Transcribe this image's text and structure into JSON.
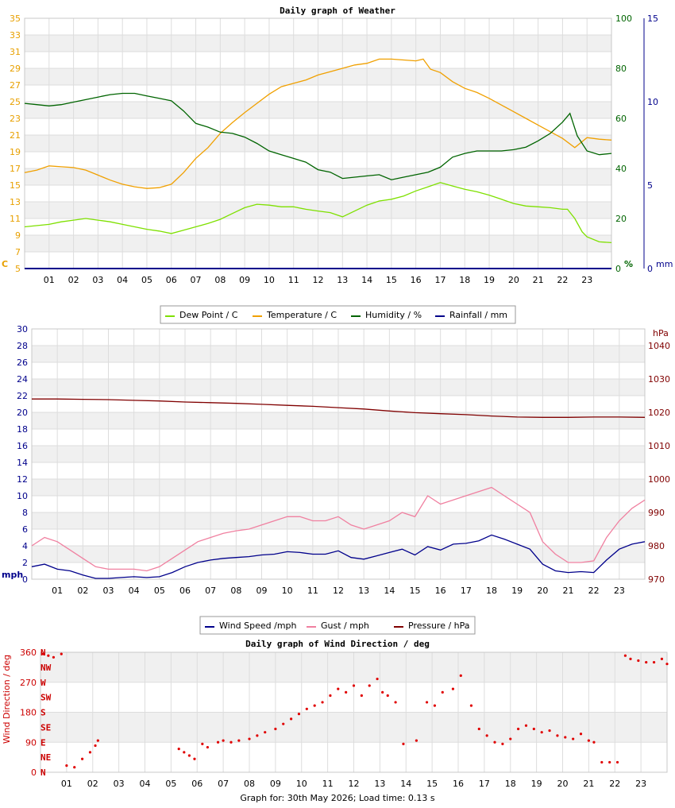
{
  "footer": {
    "text": "Graph for: 30th May 2026; Load time: 0.13 s"
  },
  "hours": [
    "01",
    "02",
    "03",
    "04",
    "05",
    "06",
    "07",
    "08",
    "09",
    "10",
    "11",
    "12",
    "13",
    "14",
    "15",
    "16",
    "17",
    "18",
    "19",
    "20",
    "21",
    "22",
    "23"
  ],
  "chart_data": [
    {
      "type": "line",
      "title": "Daily graph of Weather",
      "x_unit": "hour",
      "xlim": [
        0,
        24
      ],
      "grid": true,
      "legend_placement": "bottom",
      "axes": {
        "left": {
          "unit_label": "C",
          "ylim": [
            5,
            35
          ],
          "ticks": [
            5,
            7,
            9,
            11,
            13,
            15,
            17,
            19,
            21,
            23,
            25,
            27,
            29,
            31,
            33,
            35
          ],
          "color": "#e8a000"
        },
        "right1": {
          "unit_label": "%",
          "ylim": [
            0,
            100
          ],
          "ticks": [
            0,
            20,
            40,
            60,
            80,
            100
          ],
          "color": "#006400"
        },
        "right2": {
          "unit_label": "mm",
          "ylim": [
            0,
            15
          ],
          "ticks": [
            0,
            5,
            10,
            15
          ],
          "color": "#00008b"
        }
      },
      "series": [
        {
          "name": "Dew Point / C",
          "axis": "left",
          "color": "#7ee000",
          "x": [
            0,
            1,
            1.5,
            2,
            2.5,
            3,
            3.5,
            4,
            4.5,
            5,
            5.5,
            6,
            6.5,
            7,
            7.5,
            8,
            8.5,
            9,
            9.5,
            10,
            10.5,
            11,
            11.5,
            12,
            12.5,
            13,
            13.5,
            14,
            14.5,
            15,
            15.5,
            16,
            16.5,
            17,
            17.5,
            18,
            18.5,
            19,
            19.5,
            20,
            20.5,
            21,
            21.5,
            22,
            22.2,
            22.5,
            22.8,
            23,
            23.5,
            24
          ],
          "y": [
            10,
            10.3,
            10.6,
            10.8,
            11,
            10.8,
            10.6,
            10.3,
            10,
            9.7,
            9.5,
            9.2,
            9.6,
            10,
            10.4,
            10.9,
            11.6,
            12.3,
            12.7,
            12.6,
            12.4,
            12.4,
            12.1,
            11.9,
            11.7,
            11.2,
            11.9,
            12.6,
            13.1,
            13.3,
            13.7,
            14.3,
            14.8,
            15.3,
            14.9,
            14.5,
            14.2,
            13.8,
            13.3,
            12.8,
            12.5,
            12.4,
            12.3,
            12.1,
            12.1,
            11,
            9.4,
            8.8,
            8.2,
            8.1
          ]
        },
        {
          "name": "Temperature / C",
          "axis": "left",
          "color": "#f0a000",
          "x": [
            0,
            0.5,
            1,
            1.5,
            2,
            2.5,
            3,
            3.5,
            4,
            4.5,
            5,
            5.5,
            6,
            6.5,
            7,
            7.5,
            8,
            8.5,
            9,
            9.5,
            10,
            10.5,
            11,
            11.5,
            12,
            12.5,
            13,
            13.5,
            14,
            14.5,
            15,
            15.5,
            16,
            16.3,
            16.6,
            17,
            17.5,
            18,
            18.5,
            19,
            19.5,
            20,
            20.5,
            21,
            21.5,
            22,
            22.5,
            23,
            23.5,
            24
          ],
          "y": [
            16.5,
            16.8,
            17.3,
            17.2,
            17.1,
            16.8,
            16.2,
            15.6,
            15.1,
            14.8,
            14.6,
            14.7,
            15.1,
            16.5,
            18.2,
            19.5,
            21.2,
            22.5,
            23.7,
            24.8,
            25.9,
            26.8,
            27.2,
            27.6,
            28.2,
            28.6,
            29,
            29.4,
            29.6,
            30.1,
            30.1,
            30,
            29.9,
            30.1,
            28.9,
            28.5,
            27.4,
            26.6,
            26.1,
            25.4,
            24.6,
            23.8,
            23,
            22.2,
            21.4,
            20.6,
            19.5,
            20.7,
            20.5,
            20.4
          ]
        },
        {
          "name": "Humidity / %",
          "axis": "right1",
          "color": "#006400",
          "x": [
            0,
            0.5,
            1,
            1.5,
            2,
            2.5,
            3,
            3.5,
            4,
            4.5,
            5,
            5.5,
            6,
            6.5,
            7,
            7.5,
            8,
            8.5,
            9,
            9.5,
            10,
            10.5,
            11,
            11.5,
            12,
            12.5,
            13,
            13.5,
            14,
            14.5,
            15,
            15.5,
            16,
            16.5,
            17,
            17.5,
            18,
            18.5,
            19,
            19.5,
            20,
            20.5,
            21,
            21.5,
            22,
            22.3,
            22.6,
            23,
            23.5,
            24
          ],
          "y": [
            66,
            65.5,
            65,
            65.5,
            66.5,
            67.5,
            68.5,
            69.5,
            70,
            70,
            69,
            68,
            67,
            63,
            58,
            56.5,
            54.5,
            54,
            52.5,
            50,
            47,
            45.5,
            44,
            42.5,
            39.5,
            38.5,
            36,
            36.5,
            37,
            37.5,
            35.5,
            36.5,
            37.5,
            38.5,
            40.5,
            44.5,
            46,
            47,
            47,
            47,
            47.5,
            48.5,
            51,
            54,
            58.5,
            62,
            53,
            47,
            45.5,
            46
          ]
        },
        {
          "name": "Rainfall / mm",
          "axis": "right2",
          "color": "#00008b",
          "x": [
            0,
            24
          ],
          "y": [
            0,
            0
          ]
        }
      ]
    },
    {
      "type": "line",
      "title": "",
      "x_unit": "hour",
      "xlim": [
        0,
        24
      ],
      "grid": true,
      "legend_placement": "bottom",
      "axes": {
        "left": {
          "unit_label": "mph",
          "ylim": [
            0,
            30
          ],
          "ticks": [
            0,
            2,
            4,
            6,
            8,
            10,
            12,
            14,
            16,
            18,
            20,
            22,
            24,
            26,
            28,
            30
          ],
          "color": "#00008b"
        },
        "right": {
          "unit_label": "hPa",
          "ylim": [
            970,
            1045
          ],
          "ticks": [
            970,
            980,
            990,
            1000,
            1010,
            1020,
            1030,
            1040
          ],
          "color": "#800000"
        }
      },
      "series": [
        {
          "name": "Wind Speed /mph",
          "axis": "left",
          "color": "#00008b",
          "x": [
            0,
            0.5,
            1,
            1.5,
            2,
            2.5,
            3,
            3.5,
            4,
            4.5,
            5,
            5.5,
            6,
            6.5,
            7,
            7.5,
            8,
            8.5,
            9,
            9.5,
            10,
            10.5,
            11,
            11.5,
            12,
            12.5,
            13,
            13.5,
            14,
            14.5,
            15,
            15.5,
            16,
            16.5,
            17,
            17.5,
            18,
            18.5,
            19,
            19.5,
            20,
            20.5,
            21,
            21.5,
            22,
            22.5,
            23,
            23.5,
            24
          ],
          "y": [
            1.5,
            1.8,
            1.2,
            1,
            0.5,
            0.1,
            0.1,
            0.2,
            0.3,
            0.2,
            0.3,
            0.8,
            1.5,
            2,
            2.3,
            2.5,
            2.6,
            2.7,
            2.9,
            3,
            3.3,
            3.2,
            3,
            3,
            3.4,
            2.6,
            2.4,
            2.8,
            3.2,
            3.6,
            2.9,
            3.9,
            3.5,
            4.2,
            4.3,
            4.6,
            5.3,
            4.8,
            4.2,
            3.6,
            1.8,
            1,
            0.8,
            0.9,
            0.8,
            2.3,
            3.6,
            4.2,
            4.5
          ]
        },
        {
          "name": "Gust / mph",
          "axis": "left",
          "color": "#f080a0",
          "x": [
            0,
            0.5,
            1,
            1.5,
            2,
            2.5,
            3,
            3.5,
            4,
            4.5,
            5,
            5.5,
            6,
            6.5,
            7,
            7.5,
            8,
            8.5,
            9,
            9.5,
            10,
            10.5,
            11,
            11.5,
            12,
            12.5,
            13,
            13.5,
            14,
            14.5,
            15,
            15.5,
            16,
            16.5,
            17,
            17.5,
            18,
            18.5,
            19,
            19.5,
            20,
            20.5,
            21,
            21.5,
            22,
            22.5,
            23,
            23.5,
            24
          ],
          "y": [
            4,
            5,
            4.5,
            3.5,
            2.5,
            1.5,
            1.2,
            1.2,
            1.2,
            1,
            1.5,
            2.5,
            3.5,
            4.5,
            5,
            5.5,
            5.8,
            6,
            6.5,
            7,
            7.5,
            7.5,
            7,
            7,
            7.5,
            6.5,
            6,
            6.5,
            7,
            8,
            7.5,
            10,
            9,
            9.5,
            10,
            10.5,
            11,
            10,
            9,
            8,
            4.5,
            3,
            2,
            2,
            2.2,
            5,
            7,
            8.5,
            9.5
          ]
        },
        {
          "name": "Pressure / hPa",
          "axis": "right",
          "color": "#800000",
          "x": [
            0,
            1,
            2,
            3,
            4,
            5,
            6,
            7,
            8,
            9,
            10,
            11,
            12,
            13,
            14,
            15,
            16,
            17,
            18,
            19,
            20,
            21,
            22,
            23,
            24
          ],
          "y": [
            1024,
            1024,
            1023.9,
            1023.8,
            1023.6,
            1023.4,
            1023.1,
            1022.9,
            1022.7,
            1022.4,
            1022.1,
            1021.8,
            1021.4,
            1021,
            1020.4,
            1019.9,
            1019.6,
            1019.3,
            1018.9,
            1018.6,
            1018.5,
            1018.5,
            1018.6,
            1018.6,
            1018.5
          ]
        }
      ]
    },
    {
      "type": "scatter",
      "title": "Daily graph of Wind Direction / deg",
      "x_unit": "hour",
      "xlim": [
        0,
        24
      ],
      "grid": true,
      "axes": {
        "left": {
          "axis_label": "Wind Direction / deg",
          "ylim": [
            0,
            360
          ],
          "ticks": [
            0,
            90,
            180,
            270,
            360
          ],
          "color": "#cc0000"
        },
        "compass": {
          "labels": [
            "N",
            "NE",
            "E",
            "SE",
            "S",
            "SW",
            "W",
            "NW",
            "N"
          ],
          "values": [
            0,
            45,
            90,
            135,
            180,
            225,
            270,
            315,
            360
          ]
        }
      },
      "series": [
        {
          "name": "Wind Direction",
          "color": "#e00000",
          "x": [
            0.1,
            0.3,
            0.5,
            0.8,
            1,
            1.3,
            1.6,
            1.9,
            2.1,
            2.2,
            5.3,
            5.5,
            5.7,
            5.9,
            6.2,
            6.4,
            6.8,
            7,
            7.3,
            7.6,
            8,
            8.3,
            8.6,
            9,
            9.3,
            9.6,
            9.9,
            10.2,
            10.5,
            10.8,
            11.1,
            11.4,
            11.7,
            12,
            12.3,
            12.6,
            12.9,
            13.1,
            13.3,
            13.6,
            13.9,
            14.4,
            14.8,
            15.1,
            15.4,
            15.8,
            16.1,
            16.5,
            16.8,
            17.1,
            17.4,
            17.7,
            18,
            18.3,
            18.6,
            18.9,
            19.2,
            19.5,
            19.8,
            20.1,
            20.4,
            20.7,
            21,
            21.2,
            21.5,
            21.8,
            22.1,
            22.4,
            22.6,
            22.9,
            23.2,
            23.5,
            23.8,
            24
          ],
          "y": [
            355,
            350,
            345,
            355,
            20,
            15,
            40,
            60,
            80,
            95,
            70,
            60,
            50,
            40,
            85,
            75,
            90,
            95,
            90,
            95,
            100,
            110,
            120,
            130,
            145,
            160,
            175,
            190,
            200,
            210,
            230,
            250,
            240,
            260,
            230,
            260,
            280,
            240,
            230,
            210,
            85,
            95,
            210,
            200,
            240,
            250,
            290,
            200,
            130,
            110,
            90,
            85,
            100,
            130,
            140,
            130,
            120,
            125,
            110,
            105,
            100,
            115,
            95,
            90,
            30,
            30,
            30,
            350,
            340,
            335,
            330,
            330,
            340,
            325
          ]
        }
      ]
    }
  ]
}
